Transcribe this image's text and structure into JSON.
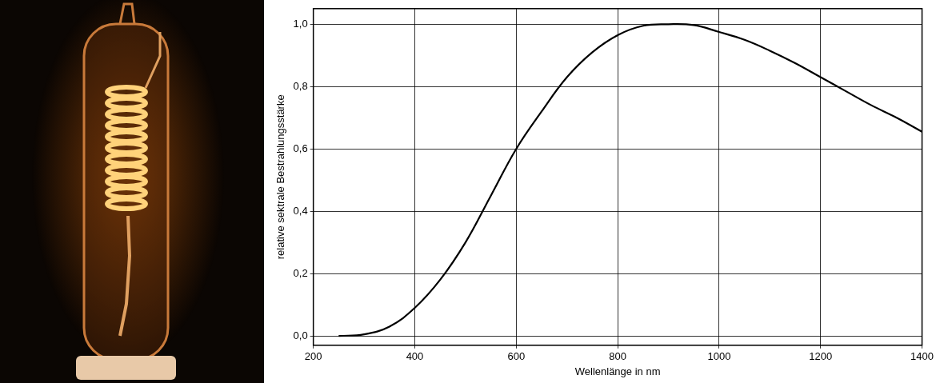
{
  "chart_data": {
    "type": "line",
    "x_label": "Wellenlänge in nm",
    "y_label": "relative sektrale Bestrahlungsstärke",
    "x": [
      250,
      300,
      350,
      400,
      450,
      500,
      550,
      600,
      650,
      700,
      750,
      800,
      850,
      900,
      950,
      1000,
      1050,
      1100,
      1150,
      1200,
      1250,
      1300,
      1350,
      1400
    ],
    "values": [
      0.0,
      0.005,
      0.03,
      0.09,
      0.18,
      0.3,
      0.45,
      0.6,
      0.72,
      0.83,
      0.91,
      0.965,
      0.995,
      1.0,
      0.997,
      0.975,
      0.95,
      0.915,
      0.875,
      0.83,
      0.785,
      0.74,
      0.7,
      0.655
    ],
    "color": "#000000",
    "xlim": [
      200,
      1400
    ],
    "xticks": [
      200,
      400,
      600,
      800,
      1000,
      1200,
      1400
    ],
    "ylim": [
      -0.03,
      1.05
    ],
    "yticks": [
      {
        "value": 0,
        "label": "0,0"
      },
      {
        "value": 0.2,
        "label": "0,2"
      },
      {
        "value": 0.4,
        "label": "0,4"
      },
      {
        "value": 0.6,
        "label": "0,6"
      },
      {
        "value": 0.8,
        "label": "0,8"
      },
      {
        "value": 1.0,
        "label": "1,0"
      }
    ],
    "grid": true
  }
}
